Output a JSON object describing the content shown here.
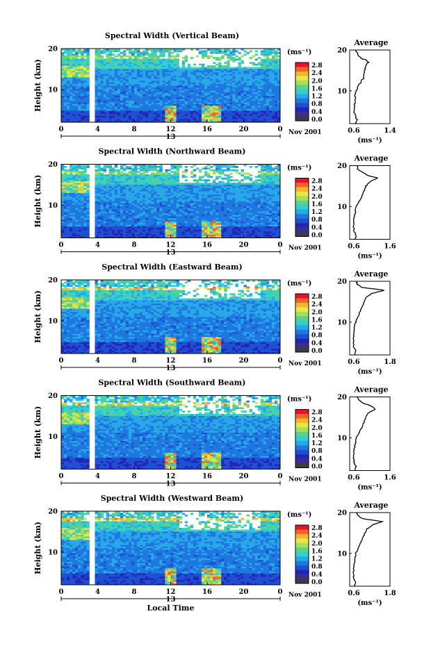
{
  "chart_data": {
    "type": "heatmap",
    "shared": {
      "ylabel": "Height (km)",
      "x_ticks": [
        "0",
        "4",
        "8",
        "12",
        "16",
        "20",
        "0"
      ],
      "x_range": [
        0,
        24
      ],
      "y_ticks": [
        "10",
        "20"
      ],
      "y_range": [
        2,
        20
      ],
      "date_day": "13",
      "date_month": "Nov 2001",
      "xlabel": "Local Time",
      "colorbar_unit": "(ms⁻¹)",
      "colorbar_levels": [
        "2.8",
        "2.4",
        "2.0",
        "1.6",
        "1.2",
        "0.8",
        "0.4",
        "0.0"
      ],
      "colorbar_colors": [
        "#e6142a",
        "#f0642a",
        "#f5b42c",
        "#e9e64a",
        "#a6e05a",
        "#5cd08c",
        "#2fd0d0",
        "#28a8e8",
        "#1e78e0",
        "#1e50d2",
        "#2424b8",
        "#3a2f8a",
        "#3c3c46"
      ],
      "avg_title": "Average",
      "avg_unit": "(ms⁻¹)",
      "avg_y_ticks": [
        "10",
        "20"
      ]
    },
    "panels": [
      {
        "title": "Spectral Width (Vertical Beam)",
        "avg_x_ticks": [
          "0.6",
          "1.4"
        ],
        "avg_xlim": [
          0.5,
          1.4
        ],
        "avg_profile": [
          [
            0.62,
            2
          ],
          [
            0.66,
            3
          ],
          [
            0.62,
            4
          ],
          [
            0.6,
            5
          ],
          [
            0.62,
            6
          ],
          [
            0.61,
            7
          ],
          [
            0.63,
            8
          ],
          [
            0.62,
            9
          ],
          [
            0.65,
            10
          ],
          [
            0.68,
            11
          ],
          [
            0.74,
            12
          ],
          [
            0.8,
            13
          ],
          [
            0.82,
            14
          ],
          [
            0.84,
            15
          ],
          [
            0.86,
            16
          ],
          [
            0.92,
            17
          ],
          [
            0.86,
            17.6
          ],
          [
            0.74,
            18
          ],
          [
            0.68,
            19
          ],
          [
            0.64,
            20
          ]
        ]
      },
      {
        "title": "Spectral Width (Northward Beam)",
        "avg_x_ticks": [
          "0.6",
          "1.6"
        ],
        "avg_xlim": [
          0.5,
          1.6
        ],
        "avg_profile": [
          [
            0.64,
            2
          ],
          [
            0.68,
            3
          ],
          [
            0.62,
            4
          ],
          [
            0.61,
            5
          ],
          [
            0.62,
            6
          ],
          [
            0.62,
            7
          ],
          [
            0.64,
            8
          ],
          [
            0.66,
            9
          ],
          [
            0.68,
            10
          ],
          [
            0.74,
            11
          ],
          [
            0.8,
            12
          ],
          [
            0.86,
            13
          ],
          [
            0.9,
            14
          ],
          [
            0.94,
            15
          ],
          [
            1.05,
            16
          ],
          [
            1.25,
            17
          ],
          [
            1.0,
            17.6
          ],
          [
            0.82,
            18.5
          ],
          [
            0.72,
            19.2
          ],
          [
            0.7,
            20
          ]
        ]
      },
      {
        "title": "Spectral Width (Eastward Beam)",
        "avg_x_ticks": [
          "0.6",
          "1.8"
        ],
        "avg_xlim": [
          0.5,
          1.8
        ],
        "avg_profile": [
          [
            0.66,
            2
          ],
          [
            0.7,
            3
          ],
          [
            0.63,
            4
          ],
          [
            0.62,
            5
          ],
          [
            0.63,
            6
          ],
          [
            0.63,
            7
          ],
          [
            0.65,
            8
          ],
          [
            0.66,
            9
          ],
          [
            0.7,
            10
          ],
          [
            0.74,
            11
          ],
          [
            0.8,
            12
          ],
          [
            0.86,
            13
          ],
          [
            0.92,
            14
          ],
          [
            0.96,
            15
          ],
          [
            1.02,
            16
          ],
          [
            1.2,
            17
          ],
          [
            1.62,
            17.8
          ],
          [
            0.9,
            18.5
          ],
          [
            0.74,
            19.3
          ],
          [
            0.72,
            20
          ]
        ]
      },
      {
        "title": "Spectral Width (Southward Beam)",
        "avg_x_ticks": [
          "0.6",
          "1.6"
        ],
        "avg_xlim": [
          0.5,
          1.6
        ],
        "avg_profile": [
          [
            0.64,
            2
          ],
          [
            0.68,
            3
          ],
          [
            0.62,
            4
          ],
          [
            0.61,
            5
          ],
          [
            0.62,
            6
          ],
          [
            0.62,
            7
          ],
          [
            0.64,
            8
          ],
          [
            0.66,
            9
          ],
          [
            0.68,
            10
          ],
          [
            0.74,
            11
          ],
          [
            0.8,
            12
          ],
          [
            0.86,
            13
          ],
          [
            0.9,
            14
          ],
          [
            0.94,
            15
          ],
          [
            1.0,
            16
          ],
          [
            1.2,
            17
          ],
          [
            1.08,
            17.8
          ],
          [
            0.86,
            18.5
          ],
          [
            0.74,
            19.3
          ],
          [
            0.7,
            20
          ]
        ]
      },
      {
        "title": "Spectral Width (Westward Beam)",
        "avg_x_ticks": [
          "0.6",
          "1.8"
        ],
        "avg_xlim": [
          0.5,
          1.8
        ],
        "avg_profile": [
          [
            0.66,
            2
          ],
          [
            0.7,
            3
          ],
          [
            0.63,
            4
          ],
          [
            0.62,
            5
          ],
          [
            0.63,
            6
          ],
          [
            0.64,
            7
          ],
          [
            0.66,
            8
          ],
          [
            0.68,
            9
          ],
          [
            0.7,
            10
          ],
          [
            0.76,
            11
          ],
          [
            0.82,
            12
          ],
          [
            0.88,
            13
          ],
          [
            0.94,
            14
          ],
          [
            1.0,
            15
          ],
          [
            1.06,
            16
          ],
          [
            1.24,
            17
          ],
          [
            1.56,
            17.8
          ],
          [
            0.92,
            18.5
          ],
          [
            0.76,
            19.3
          ],
          [
            0.72,
            20
          ]
        ]
      }
    ]
  }
}
